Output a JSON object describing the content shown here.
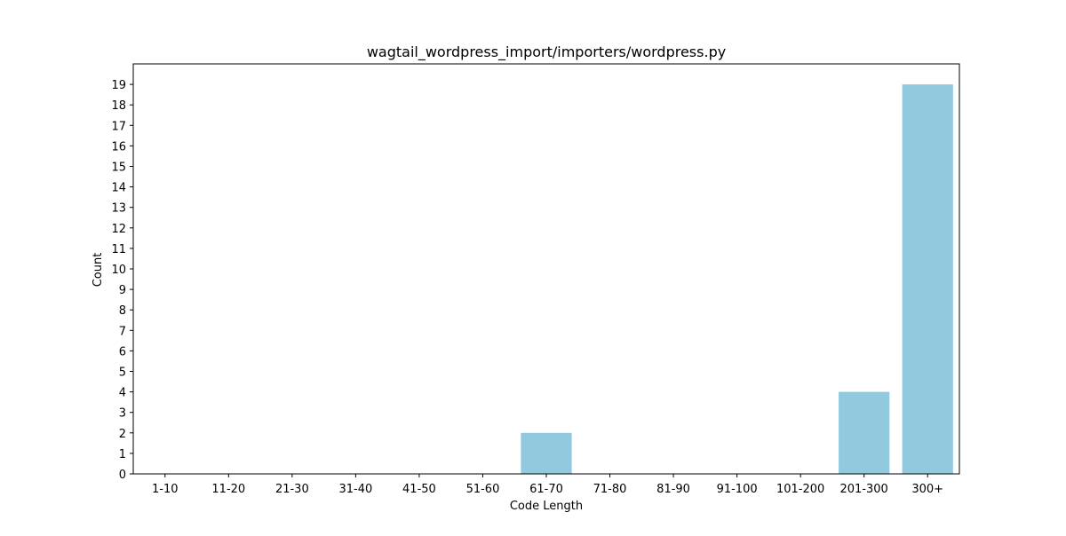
{
  "chart_data": {
    "type": "bar",
    "title": "wagtail_wordpress_import/importers/wordpress.py",
    "xlabel": "Code Length",
    "ylabel": "Count",
    "categories": [
      "1-10",
      "11-20",
      "21-30",
      "31-40",
      "41-50",
      "51-60",
      "61-70",
      "71-80",
      "81-90",
      "91-100",
      "101-200",
      "201-300",
      "300+"
    ],
    "values": [
      0,
      0,
      0,
      0,
      0,
      0,
      2,
      0,
      0,
      0,
      0,
      4,
      19
    ],
    "ylim": [
      0,
      20
    ],
    "yticks": [
      0,
      1,
      2,
      3,
      4,
      5,
      6,
      7,
      8,
      9,
      10,
      11,
      12,
      13,
      14,
      15,
      16,
      17,
      18,
      19
    ],
    "grid": false,
    "legend": "none",
    "bar_color": "#92c9df"
  }
}
